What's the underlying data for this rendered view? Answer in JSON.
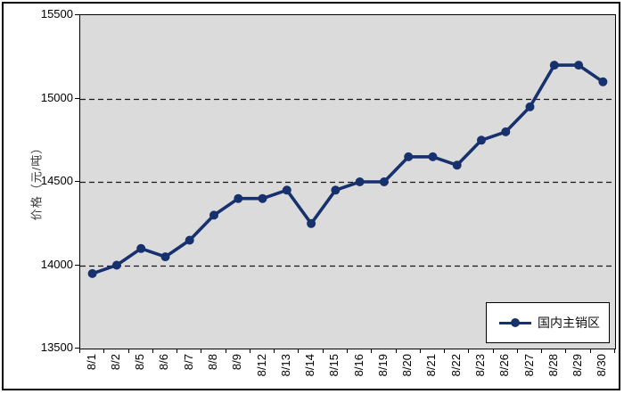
{
  "chart_data": {
    "type": "line",
    "title": "",
    "xlabel": "",
    "ylabel": "价格（元/吨）",
    "categories": [
      "8/1",
      "8/2",
      "8/5",
      "8/6",
      "8/7",
      "8/8",
      "8/9",
      "8/12",
      "8/13",
      "8/14",
      "8/15",
      "8/16",
      "8/19",
      "8/20",
      "8/21",
      "8/22",
      "8/23",
      "8/26",
      "8/27",
      "8/28",
      "8/29",
      "8/30"
    ],
    "series": [
      {
        "name": "国内主销区",
        "values": [
          13950,
          14000,
          14100,
          14050,
          14150,
          14300,
          14400,
          14400,
          14450,
          14250,
          14450,
          14500,
          14500,
          14650,
          14650,
          14600,
          14750,
          14800,
          14950,
          15200,
          15200,
          15100
        ],
        "marker": "circle"
      }
    ],
    "ylim": [
      13500,
      15500
    ],
    "yticks": [
      13500,
      14000,
      14500,
      15000,
      15500
    ],
    "gridlines": {
      "orientation": "horizontal",
      "style": "dashed",
      "at": [
        14000,
        14500,
        15000
      ]
    },
    "legend_position": "bottom-right-inside",
    "grid": true
  },
  "legend": {
    "label": "国内主销区"
  },
  "colors": {
    "line": "#17316F",
    "plot_background": "#DBDBDB",
    "gridline": "#1a1a1a",
    "axis_border": "#000000",
    "page_background": "#FFFFFF",
    "text": "#000000"
  }
}
